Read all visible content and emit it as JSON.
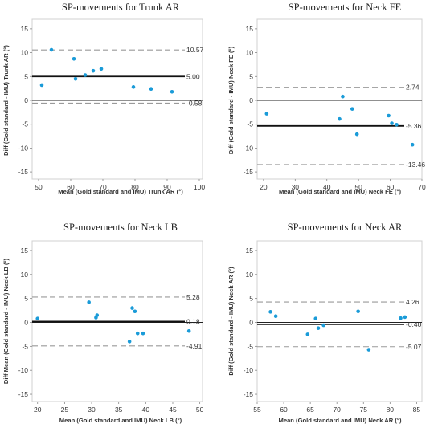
{
  "chart_data": [
    {
      "type": "scatter",
      "title": "SP-movements for Trunk AR",
      "xlabel": "Mean (Gold standard and IMU) Trunk AR (°)",
      "ylabel": "Diff (Gold standard - IMU) Trunk AR (°)",
      "xlim": [
        48,
        101
      ],
      "ylim": [
        -16.5,
        17
      ],
      "xticks": [
        "50",
        "60",
        "70",
        "80",
        "90",
        "100"
      ],
      "yticks": [
        "15",
        "10",
        "5",
        "0",
        "-5",
        "-10",
        "-15"
      ],
      "point_color": "#1a9bd8",
      "points": [
        {
          "x": 51,
          "y": 3.2
        },
        {
          "x": 54,
          "y": 10.6
        },
        {
          "x": 61,
          "y": 8.7
        },
        {
          "x": 61.5,
          "y": 4.5
        },
        {
          "x": 64.5,
          "y": 5.3
        },
        {
          "x": 67,
          "y": 6.2
        },
        {
          "x": 69.5,
          "y": 6.6
        },
        {
          "x": 79.5,
          "y": 2.8
        },
        {
          "x": 85,
          "y": 2.4
        },
        {
          "x": 91.5,
          "y": 1.8
        }
      ],
      "ref_lines": [
        {
          "value": 10.57,
          "label": "10.57",
          "style": "dashed"
        },
        {
          "value": 5.0,
          "label": "5.00",
          "style": "solid"
        },
        {
          "value": -0.58,
          "label": "-0.58",
          "style": "dashed"
        }
      ],
      "grid": false
    },
    {
      "type": "scatter",
      "title": "SP-movements for Neck FE",
      "xlabel": "Mean (Gold standard and IMU) Neck FE (°)",
      "ylabel": "Diff (Gold standard - IMU) Neck FE (°)",
      "xlim": [
        18,
        70
      ],
      "ylim": [
        -16.5,
        17
      ],
      "xticks": [
        "20",
        "30",
        "40",
        "50",
        "60",
        "70"
      ],
      "yticks": [
        "15",
        "10",
        "5",
        "0",
        "-5",
        "-10",
        "-15"
      ],
      "point_color": "#1a9bd8",
      "points": [
        {
          "x": 21,
          "y": -2.8
        },
        {
          "x": 44,
          "y": -3.9
        },
        {
          "x": 45,
          "y": 0.8
        },
        {
          "x": 48,
          "y": -1.8
        },
        {
          "x": 49.5,
          "y": -7.1
        },
        {
          "x": 59.5,
          "y": -3.2
        },
        {
          "x": 60.5,
          "y": -4.8
        },
        {
          "x": 62,
          "y": -5.1
        },
        {
          "x": 67,
          "y": -9.3
        }
      ],
      "ref_lines": [
        {
          "value": 2.74,
          "label": "2.74",
          "style": "dashed"
        },
        {
          "value": -5.36,
          "label": "-5.36",
          "style": "solid"
        },
        {
          "value": -13.46,
          "label": "-13.46",
          "style": "dashed"
        }
      ],
      "grid": false
    },
    {
      "type": "scatter",
      "title": "SP-movements for Neck LB",
      "xlabel": "Mean (Gold standard and IMU) Neck LB (°)",
      "ylabel": "Diff Mean (Gold standard - IMU) Neck LB (°)",
      "xlim": [
        19,
        50.5
      ],
      "ylim": [
        -16.5,
        17
      ],
      "xticks": [
        "20",
        "25",
        "30",
        "35",
        "40",
        "45",
        "50"
      ],
      "yticks": [
        "15",
        "10",
        "5",
        "0",
        "-5",
        "-10",
        "-15"
      ],
      "point_color": "#1a9bd8",
      "points": [
        {
          "x": 20,
          "y": 0.8
        },
        {
          "x": 29.5,
          "y": 4.2
        },
        {
          "x": 30.8,
          "y": 1.0
        },
        {
          "x": 31,
          "y": 1.5
        },
        {
          "x": 37,
          "y": -4.0
        },
        {
          "x": 37.5,
          "y": 3.0
        },
        {
          "x": 38,
          "y": 2.3
        },
        {
          "x": 38.5,
          "y": -2.3
        },
        {
          "x": 39.5,
          "y": -2.3
        },
        {
          "x": 48,
          "y": -1.8
        }
      ],
      "ref_lines": [
        {
          "value": 5.28,
          "label": "5.28",
          "style": "dashed"
        },
        {
          "value": 0.18,
          "label": "0.18",
          "style": "solid"
        },
        {
          "value": -4.91,
          "label": "-4.91",
          "style": "dashed"
        }
      ],
      "grid": false
    },
    {
      "type": "scatter",
      "title": "SP-movements for Neck AR",
      "xlabel": "Mean (Gold standard and IMU) Neck AR (°)",
      "ylabel": "Diff (Gold standard - IMU) Neck AR (°)",
      "xlim": [
        55,
        86
      ],
      "ylim": [
        -16.5,
        17
      ],
      "xticks": [
        "55",
        "60",
        "65",
        "70",
        "75",
        "80",
        "85"
      ],
      "yticks": [
        "15",
        "10",
        "5",
        "0",
        "-5",
        "-10",
        "-15"
      ],
      "point_color": "#1a9bd8",
      "points": [
        {
          "x": 57.5,
          "y": 2.2
        },
        {
          "x": 58.5,
          "y": 1.3
        },
        {
          "x": 64.5,
          "y": -2.5
        },
        {
          "x": 66,
          "y": 0.8
        },
        {
          "x": 66.5,
          "y": -1.2
        },
        {
          "x": 67.5,
          "y": -0.6
        },
        {
          "x": 74,
          "y": 2.3
        },
        {
          "x": 76,
          "y": -5.7
        },
        {
          "x": 82,
          "y": 0.9
        },
        {
          "x": 82.8,
          "y": 1.1
        }
      ],
      "ref_lines": [
        {
          "value": 4.26,
          "label": "4.26",
          "style": "dashed"
        },
        {
          "value": -0.4,
          "label": "-0.40",
          "style": "solid"
        },
        {
          "value": -5.07,
          "label": "-5.07",
          "style": "dashed"
        }
      ],
      "grid": false
    }
  ]
}
